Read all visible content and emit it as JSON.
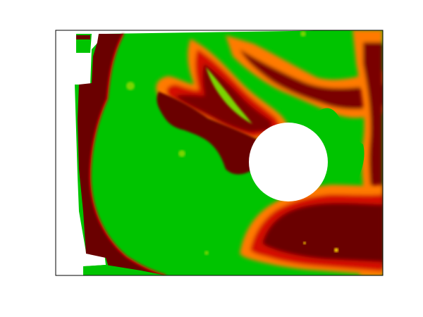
{
  "figure": {
    "colors": {
      "background": "#ffffff",
      "green": "#00c400",
      "yellow_green": "#b8e000",
      "yellow": "#ffe000",
      "orange": "#ff7a00",
      "red": "#d41000",
      "dark_red": "#7a0000",
      "deepest_red": "#5e0000",
      "frame": "#000000",
      "hole": "#ffffff"
    },
    "regions": [
      {
        "name": "green-field",
        "color": "green"
      },
      {
        "name": "dark-red-left-band",
        "color": "dark_red"
      },
      {
        "name": "upper-red-streak",
        "color": "dark_red"
      },
      {
        "name": "lower-red-region",
        "color": "dark_red"
      },
      {
        "name": "right-edge-red-region",
        "color": "dark_red"
      },
      {
        "name": "circular-hole",
        "color": "hole"
      }
    ]
  }
}
